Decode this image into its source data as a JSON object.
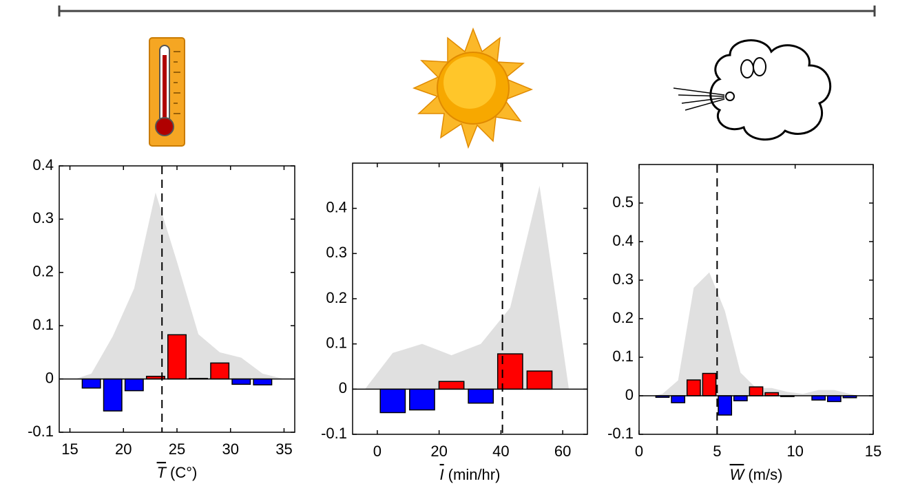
{
  "chart_data": [
    {
      "type": "bar",
      "xlabel_symbol": "T",
      "xlabel_unit": "(C°)",
      "xlim": [
        14,
        36
      ],
      "ylim": [
        -0.1,
        0.4
      ],
      "xticks": [
        15,
        20,
        25,
        30,
        35
      ],
      "yticks": [
        -0.1,
        0,
        0.1,
        0.2,
        0.3,
        0.4
      ],
      "reference_x": 23.6,
      "area": {
        "color": "#e0e0e0",
        "x": [
          15.5,
          17,
          19,
          21,
          23,
          25,
          27,
          29,
          31,
          33,
          35
        ],
        "values": [
          0,
          0.01,
          0.08,
          0.17,
          0.35,
          0.22,
          0.084,
          0.05,
          0.04,
          0.01,
          0
        ]
      },
      "bars": {
        "pos_color": "#ff0000",
        "neg_color": "#0000ff",
        "x": [
          17,
          19,
          21,
          23,
          25,
          27,
          29,
          31,
          33
        ],
        "values": [
          -0.017,
          -0.06,
          -0.022,
          0.005,
          0.083,
          0.001,
          0.03,
          -0.01,
          -0.011
        ]
      }
    },
    {
      "type": "bar",
      "xlabel_symbol": "I",
      "xlabel_unit": "(min/hr)",
      "xlim": [
        -8,
        68
      ],
      "ylim": [
        -0.1,
        0.5
      ],
      "xticks": [
        0,
        20,
        40,
        60
      ],
      "yticks": [
        -0.1,
        0,
        0.1,
        0.2,
        0.3,
        0.4
      ],
      "reference_x": 40.5,
      "area": {
        "color": "#e0e0e0",
        "x": [
          -4,
          5,
          14.5,
          24,
          33.5,
          43,
          52.5,
          62
        ],
        "values": [
          0,
          0.08,
          0.1,
          0.075,
          0.1,
          0.18,
          0.45,
          0
        ]
      },
      "bars": {
        "pos_color": "#ff0000",
        "neg_color": "#0000ff",
        "x": [
          5,
          14.5,
          24,
          33.5,
          43,
          52.5
        ],
        "values": [
          -0.052,
          -0.046,
          0.017,
          -0.031,
          0.078,
          0.04
        ]
      }
    },
    {
      "type": "bar",
      "xlabel_symbol": "W",
      "xlabel_unit": "(m/s)",
      "xlim": [
        0,
        15
      ],
      "ylim": [
        -0.1,
        0.6
      ],
      "xticks": [
        0,
        5,
        10,
        15
      ],
      "yticks": [
        -0.1,
        0,
        0.1,
        0.2,
        0.3,
        0.4,
        0.5
      ],
      "reference_x": 5,
      "area": {
        "color": "#e0e0e0",
        "x": [
          1,
          1.5,
          2.5,
          3.5,
          4.5,
          5.5,
          6.5,
          7.5,
          8.5,
          9.5,
          10.5,
          11.5,
          12.5,
          13.5,
          14
        ],
        "values": [
          0,
          0.005,
          0.04,
          0.28,
          0.32,
          0.22,
          0.06,
          0.02,
          0.02,
          0.01,
          0.005,
          0.015,
          0.015,
          0.005,
          0
        ]
      },
      "bars": {
        "pos_color": "#ff0000",
        "neg_color": "#0000ff",
        "x": [
          1.5,
          2.5,
          3.5,
          4.5,
          5.5,
          6.5,
          7.5,
          8.5,
          9.5,
          10.5,
          11.5,
          12.5,
          13.5
        ],
        "values": [
          -0.004,
          -0.018,
          0.041,
          0.058,
          -0.05,
          -0.013,
          0.023,
          0.008,
          -0.002,
          0,
          -0.011,
          -0.015,
          -0.005
        ]
      }
    }
  ]
}
